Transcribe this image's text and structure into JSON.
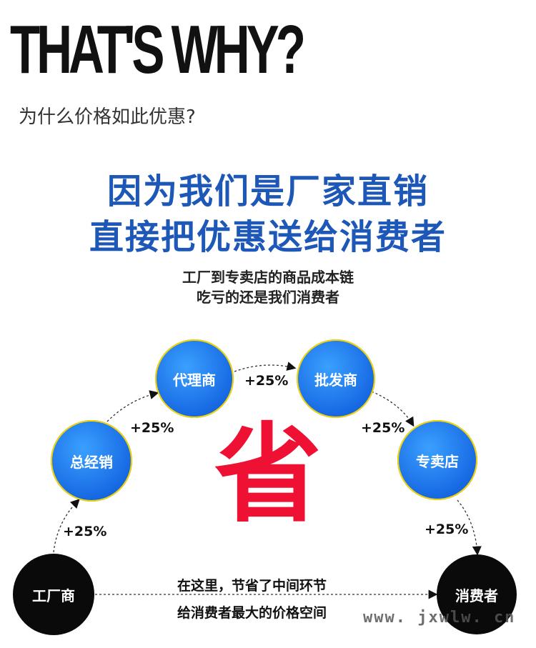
{
  "header": {
    "title": "THAT'S WHY?",
    "subtitle": "为什么价格如此优惠?"
  },
  "headline": {
    "line1": "因为我们是厂家直销",
    "line2": "直接把优惠送给消费者"
  },
  "subhead": {
    "line1": "工厂到专卖店的商品成本链",
    "line2": "吃亏的还是我们消费者"
  },
  "chain": {
    "nodes": [
      "工厂商",
      "总经销",
      "代理商",
      "批发商",
      "专卖店",
      "消费者"
    ],
    "markups": [
      "+25%",
      "+25%",
      "+25%",
      "+25%",
      "+25%"
    ]
  },
  "center_char": "省",
  "note": {
    "line1": "在这里，节省了中间环节",
    "line2": "给消费者最大的价格空间"
  },
  "watermark": "www. jxwlw. cn",
  "colors": {
    "blue": "#1d57b8",
    "red": "#ee1133",
    "circle_blue": "#1464e0",
    "circle_black": "#0a0a0a"
  }
}
